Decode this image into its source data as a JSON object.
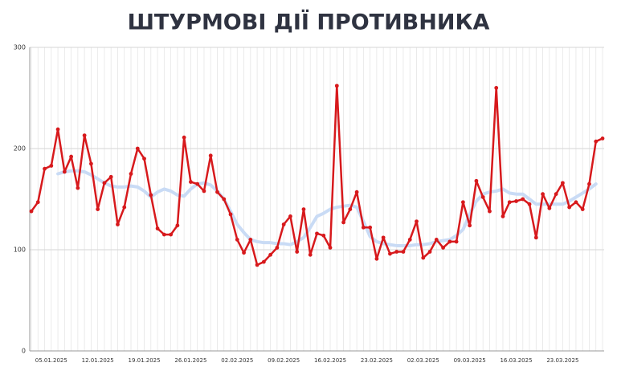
{
  "chart_data": {
    "type": "line",
    "title": "ШТУРМОВІ ДІЇ ПРОТИВНИКА",
    "categories": [
      null,
      null,
      null,
      "05.01.2025",
      null,
      null,
      null,
      null,
      null,
      null,
      "12.01.2025",
      null,
      null,
      null,
      null,
      null,
      null,
      "19.01.2025",
      null,
      null,
      null,
      null,
      null,
      null,
      "26.01.2025",
      null,
      null,
      null,
      null,
      null,
      null,
      "02.02.2025",
      null,
      null,
      null,
      null,
      null,
      null,
      "09.02.2025",
      null,
      null,
      null,
      null,
      null,
      null,
      "16.02.2025",
      null,
      null,
      null,
      null,
      null,
      null,
      "23.02.2025",
      null,
      null,
      null,
      null,
      null,
      null,
      "02.03.2025",
      null,
      null,
      null,
      null,
      null,
      null,
      "09.03.2025",
      null,
      null,
      null,
      null,
      null,
      null,
      "16.03.2025",
      null,
      null,
      null,
      null,
      null,
      null,
      "23.03.2025",
      null,
      null,
      null,
      null,
      null,
      null
    ],
    "series": [
      {
        "color": "#c9dbf5",
        "width": 4,
        "markers": false,
        "values": [
          null,
          null,
          null,
          null,
          175,
          177,
          178,
          178,
          177,
          174,
          170,
          166,
          163,
          162,
          162,
          163,
          162,
          158,
          152,
          157,
          160,
          158,
          154,
          153,
          160,
          165,
          166,
          164,
          158,
          150,
          138,
          125,
          117,
          110,
          108,
          107,
          107,
          106,
          106,
          105,
          108,
          112,
          122,
          133,
          136,
          140,
          142,
          143,
          144,
          142,
          128,
          113,
          108,
          106,
          105,
          104,
          104,
          104,
          105,
          105,
          106,
          108,
          109,
          110,
          114,
          120,
          135,
          148,
          155,
          157,
          158,
          160,
          156,
          155,
          155,
          150,
          145,
          145,
          145,
          145,
          145,
          148,
          152,
          156,
          160,
          165,
          null
        ]
      },
      {
        "color": "#d7191c",
        "width": 2.5,
        "markers": true,
        "values": [
          138,
          147,
          180,
          183,
          219,
          177,
          192,
          161,
          213,
          185,
          140,
          166,
          172,
          125,
          142,
          175,
          200,
          190,
          154,
          121,
          115,
          115,
          124,
          211,
          167,
          165,
          158,
          193,
          157,
          150,
          135,
          110,
          97,
          110,
          85,
          88,
          95,
          102,
          125,
          133,
          98,
          140,
          95,
          116,
          114,
          102,
          262,
          127,
          140,
          157,
          122,
          122,
          91,
          112,
          96,
          98,
          98,
          110,
          128,
          92,
          98,
          110,
          102,
          108,
          108,
          147,
          124,
          168,
          152,
          138,
          260,
          133,
          147,
          148,
          150,
          145,
          112,
          155,
          141,
          155,
          166,
          142,
          147,
          140,
          165,
          207,
          210
        ]
      }
    ],
    "ylim": [
      0,
      300
    ],
    "yticks": [
      0,
      100,
      200,
      300
    ],
    "grid": true
  }
}
